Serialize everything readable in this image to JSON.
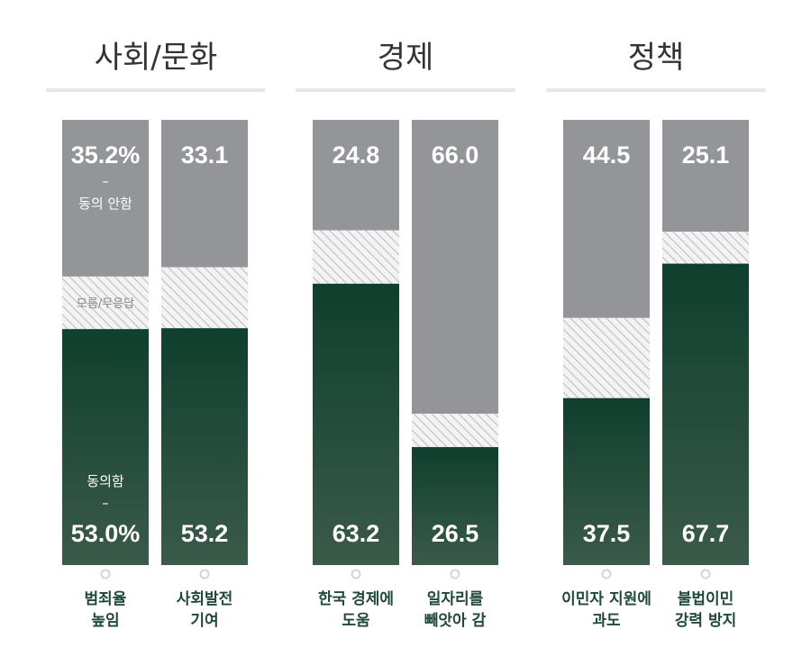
{
  "chart_data": {
    "type": "bar",
    "stacked": true,
    "percent_scale": true,
    "colors": {
      "disagree": "#939598",
      "unknown_fill": "#f3f3f3",
      "unknown_hatch": "#bdbdbd",
      "agree_top": "#0f3f2d",
      "agree_bottom": "#3b5a4a",
      "title_rule": "#e6e6e6",
      "category_text": "#1f4a38"
    },
    "groups": [
      {
        "title": "사회/문화",
        "bars": [
          0,
          1
        ]
      },
      {
        "title": "경제",
        "bars": [
          2,
          3
        ]
      },
      {
        "title": "정책",
        "bars": [
          4,
          5
        ]
      }
    ],
    "categories": [
      [
        "범죄율",
        "높임"
      ],
      [
        "사회발전",
        "기여"
      ],
      [
        "한국 경제에",
        "도움"
      ],
      [
        "일자리를",
        "빼앗아 감"
      ],
      [
        "이민자 지원에",
        "과도"
      ],
      [
        "불법이민",
        "강력 방지"
      ]
    ],
    "series": [
      {
        "name": "동의 안함",
        "values": [
          35.2,
          33.1,
          24.8,
          66.0,
          44.5,
          25.1
        ],
        "labels": [
          "35.2%",
          "33.1",
          "24.8",
          "66.0",
          "44.5",
          "25.1"
        ]
      },
      {
        "name": "모름/무응답",
        "values": [
          11.8,
          13.7,
          12.0,
          7.5,
          18.0,
          7.2
        ]
      },
      {
        "name": "동의함",
        "values": [
          53.0,
          53.2,
          63.2,
          26.5,
          37.5,
          67.7
        ],
        "labels": [
          "53.0%",
          "53.2",
          "63.2",
          "26.5",
          "37.5",
          "67.7"
        ]
      }
    ],
    "annotations": {
      "disagree_dash": "–",
      "disagree_note": "동의 안함",
      "unknown_note": "모름/무응답",
      "agree_note": "동의함",
      "agree_dash": "–"
    }
  }
}
